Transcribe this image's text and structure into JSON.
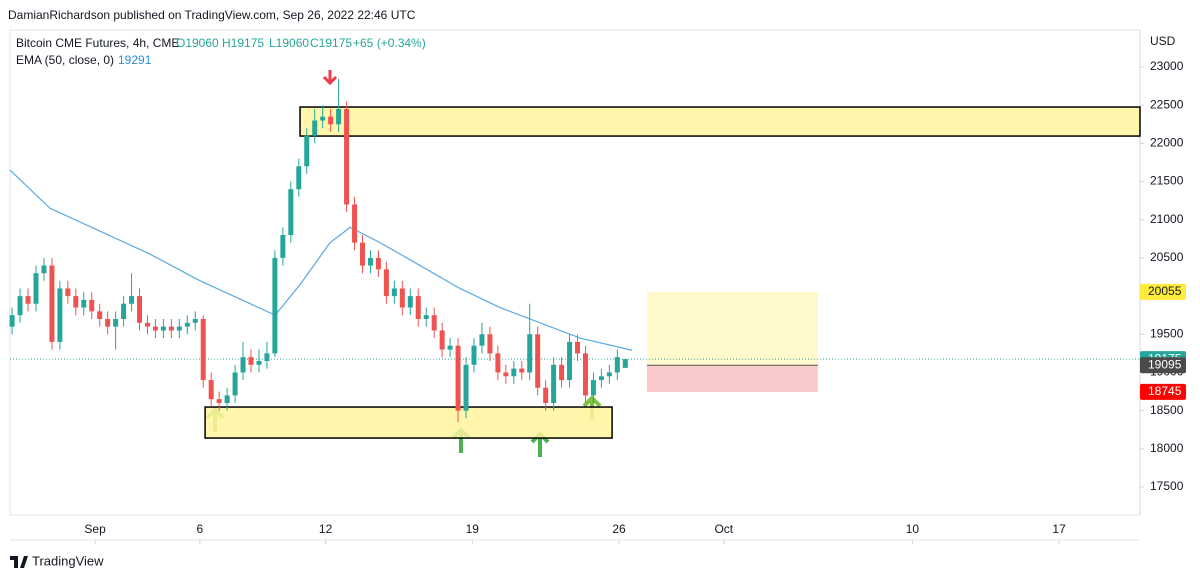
{
  "header": {
    "publisher": "DamianRichardson published on TradingView.com, Sep 26, 2022 22:46 UTC",
    "footer": "TradingView"
  },
  "chart_data": {
    "type": "candlestick",
    "title": "Bitcoin CME Futures, 4h, CME",
    "ohlc_labels": [
      "O19060",
      "H19175",
      "L19060",
      "C19175",
      "+65 (+0.34%)"
    ],
    "y_axis_label": "USD",
    "up_color": "#26a69a",
    "down_color": "#ef5350",
    "grid": false,
    "xlim": [
      -3.06,
      50.86
    ],
    "ylim": [
      17133,
      23485
    ],
    "xticks": [
      {
        "value": 1,
        "label": "Sep"
      },
      6,
      12,
      19,
      26,
      {
        "value": 31,
        "label": "Oct"
      },
      {
        "value": 40,
        "label": "10"
      },
      {
        "value": 47,
        "label": "17"
      }
    ],
    "yticks": [
      17500,
      18000,
      18500,
      19000,
      19500,
      20000,
      20500,
      21000,
      21500,
      22000,
      22500,
      23000
    ],
    "x": [
      -2.96,
      -2.58,
      -2.2,
      -1.82,
      -1.44,
      -1.06,
      -0.68,
      -0.3,
      0.08,
      0.46,
      0.84,
      1.22,
      1.6,
      1.98,
      2.36,
      2.74,
      3.12,
      3.5,
      3.88,
      4.26,
      4.64,
      5.02,
      5.4,
      5.78,
      6.16,
      6.54,
      6.92,
      7.3,
      7.68,
      8.06,
      8.44,
      8.82,
      9.2,
      9.58,
      9.96,
      10.34,
      10.72,
      11.1,
      11.48,
      11.86,
      12.24,
      12.62,
      13.0,
      13.38,
      13.76,
      14.14,
      14.52,
      14.9,
      15.28,
      15.66,
      16.04,
      16.42,
      16.8,
      17.18,
      17.56,
      17.94,
      18.32,
      18.7,
      19.08,
      19.46,
      19.84,
      20.22,
      20.6,
      20.98,
      21.36,
      21.74,
      22.12,
      22.5,
      22.88,
      23.26,
      23.64,
      24.02,
      24.4,
      24.78,
      25.16,
      25.54,
      25.92,
      26.3
    ],
    "open": [
      19600,
      19750,
      20000,
      19900,
      20300,
      20400,
      19400,
      20100,
      20000,
      19850,
      19950,
      19800,
      19700,
      19600,
      19700,
      19900,
      20000,
      19650,
      19600,
      19550,
      19600,
      19550,
      19600,
      19650,
      19700,
      18900,
      18650,
      18600,
      18700,
      19000,
      19200,
      19100,
      19150,
      19250,
      20500,
      20800,
      21400,
      21700,
      22100,
      22300,
      22350,
      22250,
      22450,
      21200,
      20700,
      20400,
      20500,
      20350,
      20000,
      20100,
      19850,
      20000,
      19700,
      19750,
      19550,
      19300,
      19350,
      18500,
      19100,
      19350,
      19500,
      19250,
      19000,
      18950,
      19050,
      19000,
      19500,
      18800,
      18600,
      19100,
      18900,
      19400,
      19250,
      18700,
      18900,
      18950,
      19000,
      19060
    ],
    "high": [
      19850,
      20100,
      20100,
      20400,
      20500,
      20500,
      20200,
      20200,
      20100,
      20050,
      20050,
      19900,
      19800,
      19800,
      20000,
      20300,
      20100,
      19750,
      19700,
      19700,
      19700,
      19700,
      19750,
      19800,
      19750,
      19000,
      18750,
      18800,
      19100,
      19400,
      19300,
      19300,
      19400,
      20600,
      20900,
      21500,
      21800,
      22200,
      22450,
      22500,
      22450,
      22850,
      22550,
      21300,
      20800,
      20600,
      20600,
      20450,
      20200,
      20200,
      20100,
      20100,
      19850,
      19850,
      19650,
      19450,
      19450,
      19200,
      19450,
      19650,
      19600,
      19350,
      19100,
      19150,
      19150,
      19900,
      19600,
      18900,
      19200,
      19200,
      19500,
      19500,
      19350,
      19000,
      19050,
      19100,
      19300,
      19175
    ],
    "low": [
      19500,
      19650,
      19800,
      19800,
      20200,
      19300,
      19300,
      19900,
      19750,
      19750,
      19700,
      19600,
      19500,
      19300,
      19600,
      19800,
      19550,
      19500,
      19450,
      19450,
      19450,
      19450,
      19500,
      19550,
      18800,
      18550,
      18500,
      18500,
      18600,
      18900,
      19000,
      19000,
      19050,
      19200,
      20400,
      20700,
      21300,
      21600,
      22000,
      22200,
      22150,
      22150,
      21100,
      20600,
      20300,
      20300,
      20250,
      19900,
      19900,
      19750,
      19750,
      19600,
      19600,
      19450,
      19200,
      19200,
      18350,
      18400,
      19000,
      19250,
      19150,
      18900,
      18850,
      18850,
      18900,
      18900,
      18700,
      18500,
      18500,
      18800,
      18800,
      19150,
      18600,
      18600,
      18800,
      18850,
      18900,
      19060
    ],
    "close": [
      19750,
      20000,
      19900,
      20300,
      20400,
      19400,
      20100,
      20000,
      19850,
      19950,
      19800,
      19700,
      19600,
      19700,
      19900,
      20000,
      19650,
      19600,
      19550,
      19600,
      19550,
      19600,
      19650,
      19700,
      18900,
      18650,
      18600,
      18700,
      19000,
      19200,
      19100,
      19150,
      19250,
      20500,
      20800,
      21400,
      21700,
      22100,
      22300,
      22350,
      22250,
      22450,
      21200,
      20700,
      20400,
      20500,
      20350,
      20000,
      20100,
      19850,
      20000,
      19700,
      19750,
      19550,
      19300,
      19350,
      18500,
      19100,
      19350,
      19500,
      19250,
      19000,
      18950,
      19050,
      19000,
      19500,
      18800,
      18600,
      19100,
      18900,
      19400,
      19250,
      18700,
      18900,
      18950,
      19000,
      19200,
      19175
    ],
    "ema": {
      "name": "EMA (50, close, 0)",
      "value_label": "19291",
      "color": "#5aa9e0",
      "x": [
        -3.06,
        -1.15,
        1.24,
        3.62,
        6.01,
        8.4,
        9.59,
        10.78,
        12.21,
        13.17,
        14.6,
        16.51,
        18.41,
        20.32,
        22.23,
        24.14,
        26.62
      ],
      "values": [
        21650,
        21150,
        20850,
        20550,
        20200,
        19900,
        19750,
        20150,
        20700,
        20900,
        20700,
        20400,
        20100,
        19850,
        19650,
        19450,
        19291
      ]
    },
    "zones": [
      {
        "x": [
          10.78,
          50.86
        ],
        "y": [
          22096,
          22476
        ]
      },
      {
        "x": [
          6.25,
          25.67
        ],
        "y": [
          18141,
          18547
        ]
      }
    ],
    "position": {
      "x": [
        27.34,
        35.49
      ],
      "target": 20055,
      "entry": 19095,
      "stop": 18745
    },
    "last_price": 19175
  }
}
